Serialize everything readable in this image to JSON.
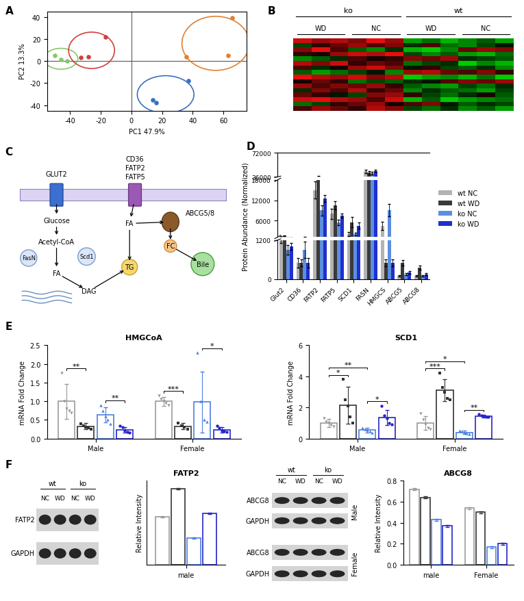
{
  "chart_data": [
    {
      "type": "scatter",
      "panel_label": "A",
      "xlabel": "PC1 47.9%",
      "ylabel": "PC2 13.3%",
      "xlim": [
        -55,
        75
      ],
      "ylim": [
        -45,
        45
      ],
      "xticks": [
        -40,
        -20,
        0,
        20,
        40,
        60
      ],
      "yticks": [
        -40,
        -20,
        0,
        20,
        40
      ],
      "series": [
        {
          "color": "#86c86a",
          "x": [
            -50,
            -46,
            -42
          ],
          "y": [
            5,
            1,
            0
          ]
        },
        {
          "color": "#d04040",
          "x": [
            -33,
            -28,
            -17
          ],
          "y": [
            3,
            4,
            22
          ]
        },
        {
          "color": "#3a6fc4",
          "x": [
            14,
            16,
            37
          ],
          "y": [
            -35,
            -38,
            -18
          ]
        },
        {
          "color": "#e08030",
          "x": [
            36,
            63,
            66
          ],
          "y": [
            4,
            5,
            39
          ]
        }
      ]
    },
    {
      "type": "heatmap",
      "panel_label": "B",
      "tick_labels": false,
      "zlim": [
        -1,
        1
      ],
      "column_groups": [
        {
          "label": "ko",
          "subgroups": [
            "WD",
            "NC"
          ]
        },
        {
          "label": "wt",
          "subgroups": [
            "WD",
            "NC"
          ]
        }
      ],
      "cells": [
        [
          0.8,
          0.6,
          0.7,
          0.5,
          0.9,
          0.6,
          -0.7,
          -0.5,
          -0.8,
          -0.6,
          -0.4,
          -0.7
        ],
        [
          -0.3,
          0.2,
          0.4,
          0.6,
          0.3,
          0.5,
          -0.2,
          0.3,
          -0.5,
          -0.6,
          -0.3,
          -0.1
        ],
        [
          0.5,
          0.9,
          0.3,
          -0.4,
          -0.6,
          -0.2,
          -0.8,
          -0.9,
          -0.6,
          0.4,
          0.6,
          0.5
        ],
        [
          0.2,
          0.1,
          0.6,
          0.8,
          0.7,
          0.9,
          -0.3,
          -0.6,
          -0.4,
          -0.7,
          -0.8,
          -0.5
        ],
        [
          -0.6,
          -0.4,
          -0.2,
          0.3,
          0.1,
          0.2,
          0.5,
          0.4,
          0.6,
          -0.2,
          -0.3,
          -0.4
        ],
        [
          0.7,
          0.5,
          0.8,
          0.2,
          0.4,
          0.3,
          -0.5,
          -0.3,
          -0.2,
          -0.9,
          -0.6,
          -0.8
        ],
        [
          0.3,
          -0.2,
          0.1,
          0.6,
          0.8,
          0.5,
          -0.1,
          0.2,
          -0.3,
          -0.4,
          -0.2,
          -0.6
        ],
        [
          -0.4,
          -0.7,
          -0.5,
          -0.3,
          -0.1,
          -0.6,
          0.6,
          0.7,
          0.4,
          0.3,
          0.5,
          0.2
        ],
        [
          0.9,
          0.7,
          0.6,
          0.8,
          0.5,
          0.7,
          -0.9,
          -0.7,
          -0.6,
          -0.8,
          -0.5,
          -0.9
        ],
        [
          0.1,
          0.4,
          0.2,
          -0.5,
          -0.3,
          -0.4,
          -0.2,
          -0.1,
          0.3,
          0.5,
          0.4,
          0.6
        ],
        [
          0.6,
          0.3,
          0.5,
          0.4,
          0.6,
          0.2,
          -0.4,
          -0.6,
          -0.7,
          -0.3,
          -0.5,
          -0.2
        ],
        [
          -0.2,
          0.5,
          0.3,
          0.7,
          0.2,
          0.4,
          -0.6,
          -0.2,
          -0.4,
          -0.5,
          -0.7,
          -0.3
        ],
        [
          0.4,
          0.2,
          -0.1,
          -0.3,
          0.5,
          0.6,
          0.2,
          -0.3,
          -0.5,
          -0.2,
          0.1,
          -0.4
        ],
        [
          0.8,
          0.9,
          0.7,
          0.6,
          0.3,
          0.8,
          -0.8,
          -0.4,
          -0.9,
          -0.7,
          -0.6,
          -0.5
        ],
        [
          -0.5,
          -0.3,
          0.2,
          0.4,
          0.6,
          0.1,
          0.3,
          0.5,
          -0.1,
          -0.4,
          -0.2,
          -0.3
        ],
        [
          0.3,
          0.6,
          0.4,
          0.2,
          0.7,
          0.5,
          -0.3,
          -0.5,
          -0.2,
          -0.6,
          -0.4,
          -0.7
        ]
      ]
    },
    {
      "type": "bar",
      "panel_label": "D",
      "ylabel": "Protein Abundance (Normalized)",
      "legend": "right",
      "categories": [
        "Glut2",
        "CD36",
        "FATP2",
        "FATP5",
        "SCD1",
        "FASN",
        "HMGCS",
        "ABCG5",
        "ABCG8"
      ],
      "y_segments": [
        {
          "ylim": [
            0,
            1200
          ],
          "yticks": [
            0,
            1200
          ]
        },
        {
          "ylim": [
            1200,
            18000
          ],
          "yticks": [
            6000,
            12000,
            18000
          ]
        },
        {
          "ylim": [
            36000,
            72000
          ],
          "yticks": [
            36000,
            72000
          ]
        }
      ],
      "series": [
        {
          "name": "wt NC",
          "color": "#b3b3b3",
          "values": [
            1300,
            500,
            15000,
            8000,
            2000,
            44000,
            4500,
            100,
            100
          ],
          "errors": [
            200,
            150,
            2500,
            1500,
            600,
            3000,
            1200,
            30,
            30
          ]
        },
        {
          "name": "wt WD",
          "color": "#3a3a3a",
          "values": [
            1500,
            500,
            36500,
            10500,
            5500,
            42000,
            500,
            500,
            350
          ],
          "errors": [
            100,
            100,
            1000,
            1200,
            1500,
            2500,
            100,
            80,
            60
          ]
        },
        {
          "name": "ko NC",
          "color": "#5b8fe0",
          "values": [
            900,
            900,
            9000,
            5500,
            2000,
            41000,
            9000,
            150,
            100
          ],
          "errors": [
            150,
            250,
            1500,
            800,
            400,
            2000,
            1800,
            40,
            30
          ]
        },
        {
          "name": "ko WD",
          "color": "#1f2fd0",
          "values": [
            1000,
            500,
            12500,
            7500,
            4500,
            45000,
            500,
            200,
            150
          ],
          "errors": [
            100,
            150,
            1000,
            600,
            900,
            2000,
            100,
            40,
            30
          ]
        }
      ]
    },
    {
      "type": "bar",
      "panel_label": "E",
      "title": "HMGCoA",
      "ylabel": "mRNA Fold Change",
      "categories": [
        "Male",
        "Female"
      ],
      "ylim": [
        0,
        2.5
      ],
      "yticks": [
        {
          "value": 0,
          "label": "0.0"
        },
        0.5,
        {
          "value": 1,
          "label": "1.0"
        },
        1.5,
        {
          "value": 2,
          "label": "2.0"
        },
        2.5
      ],
      "series": [
        {
          "name": "wt NC",
          "color": "#999999",
          "marker": "triangle_down",
          "values": [
            1.0,
            1.0
          ],
          "errors": [
            0.47,
            0.12
          ],
          "points": [
            [
              1.75,
              1.0,
              0.8,
              0.75,
              0.7
            ],
            [
              1.15,
              1.05,
              1.0,
              0.95,
              0.9
            ]
          ]
        },
        {
          "name": "wt WD",
          "color": "#333333",
          "marker": "square",
          "values": [
            0.33,
            0.33
          ],
          "errors": [
            0.08,
            0.08
          ],
          "points": [
            [
              0.4,
              0.35,
              0.3,
              0.28,
              0.25
            ],
            [
              0.42,
              0.35,
              0.3,
              0.25
            ]
          ]
        },
        {
          "name": "ko NC",
          "color": "#4a7fe0",
          "marker": "triangle_up",
          "values": [
            0.63,
            0.98
          ],
          "errors": [
            0.2,
            0.82
          ],
          "points": [
            [
              0.9,
              0.75,
              0.6,
              0.5,
              0.4
            ],
            [
              2.3,
              1.0,
              0.5,
              0.45
            ]
          ]
        },
        {
          "name": "ko WD",
          "color": "#2424c8",
          "marker": "circle",
          "values": [
            0.23,
            0.23
          ],
          "errors": [
            0.08,
            0.08
          ],
          "points": [
            [
              0.35,
              0.3,
              0.22,
              0.18,
              0.15
            ],
            [
              0.35,
              0.28,
              0.22,
              0.2,
              0.18
            ]
          ]
        }
      ],
      "significance": [
        {
          "category": "Male",
          "from": "wt NC",
          "to": "wt WD",
          "label": "**"
        },
        {
          "category": "Male",
          "from": "ko NC",
          "to": "ko WD",
          "label": "**"
        },
        {
          "category": "Female",
          "from": "wt NC",
          "to": "wt WD",
          "label": "***"
        },
        {
          "category": "Female",
          "from": "ko NC",
          "to": "ko WD",
          "label": "*"
        }
      ]
    },
    {
      "type": "bar",
      "title": "SCD1",
      "ylabel": "mRNA Fold Change",
      "categories": [
        "Male",
        "Female"
      ],
      "ylim": [
        0,
        6
      ],
      "yticks": [
        0,
        2,
        4,
        6
      ],
      "series": [
        {
          "name": "wt NC",
          "color": "#999999",
          "marker": "triangle_down",
          "values": [
            1.0,
            1.0
          ],
          "errors": [
            0.25,
            0.45
          ],
          "points": [
            [
              1.3,
              1.1,
              1.0,
              0.85,
              0.8
            ],
            [
              1.6,
              1.2,
              0.9,
              0.7,
              0.6
            ]
          ]
        },
        {
          "name": "wt WD",
          "color": "#333333",
          "marker": "square",
          "values": [
            2.15,
            3.1
          ],
          "errors": [
            1.2,
            0.7
          ],
          "points": [
            [
              3.8,
              2.5,
              2.1,
              1.4,
              1.0
            ],
            [
              4.2,
              3.3,
              3.0,
              2.6,
              2.5
            ]
          ]
        },
        {
          "name": "ko NC",
          "color": "#4a7fe0",
          "marker": "triangle_up",
          "values": [
            0.55,
            0.4
          ],
          "errors": [
            0.15,
            0.1
          ],
          "points": [
            [
              0.7,
              0.6,
              0.55,
              0.45,
              0.4
            ],
            [
              0.5,
              0.45,
              0.4,
              0.35,
              0.3
            ]
          ]
        },
        {
          "name": "ko WD",
          "color": "#2424c8",
          "marker": "circle",
          "values": [
            1.35,
            1.45
          ],
          "errors": [
            0.5,
            0.08
          ],
          "points": [
            [
              2.1,
              1.5,
              1.3,
              1.0,
              0.9
            ],
            [
              1.55,
              1.5,
              1.45,
              1.4,
              1.38
            ]
          ]
        }
      ],
      "significance": [
        {
          "category": "Male",
          "from": "wt NC",
          "to": "wt WD",
          "label": "*"
        },
        {
          "category": "Male",
          "from": "wt NC",
          "to": "ko NC",
          "label": "**"
        },
        {
          "category": "Male",
          "from": "ko NC",
          "to": "ko WD",
          "label": "*"
        },
        {
          "category": "Female",
          "from": "wt NC",
          "to": "wt WD",
          "label": "***"
        },
        {
          "category": "Female",
          "from": "wt NC",
          "to": "ko NC",
          "label": "*"
        },
        {
          "category": "Female",
          "from": "ko NC",
          "to": "ko WD",
          "label": "**"
        }
      ]
    },
    {
      "type": "bar",
      "title": "FATP2",
      "ylabel": "Relative Intensity",
      "categories": [
        "male"
      ],
      "ylim": [
        0,
        2.5
      ],
      "tick_labels": "x",
      "series": [
        {
          "name": "wt NC",
          "color": "#999999",
          "values": [
            1.42
          ],
          "errors": [
            0.02
          ]
        },
        {
          "name": "wt WD",
          "color": "#333333",
          "values": [
            2.27
          ],
          "errors": [
            0.02
          ]
        },
        {
          "name": "ko NC",
          "color": "#4a7fe0",
          "values": [
            0.8
          ],
          "errors": [
            0.02
          ]
        },
        {
          "name": "ko WD",
          "color": "#2424c8",
          "values": [
            1.52
          ],
          "errors": [
            0.02
          ]
        }
      ]
    },
    {
      "type": "bar",
      "title": "ABCG8",
      "ylabel": "Relative Intensity",
      "categories": [
        "male",
        "Female"
      ],
      "ylim": [
        0,
        0.8
      ],
      "yticks": [
        {
          "value": 0,
          "label": "0.0"
        },
        0.2,
        0.4,
        0.6,
        0.8
      ],
      "series": [
        {
          "name": "wt NC",
          "color": "#999999",
          "values": [
            0.72,
            0.54
          ],
          "errors": [
            0.01,
            0.01
          ]
        },
        {
          "name": "wt WD",
          "color": "#333333",
          "values": [
            0.64,
            0.5
          ],
          "errors": [
            0.01,
            0.01
          ]
        },
        {
          "name": "ko NC",
          "color": "#4a7fe0",
          "values": [
            0.43,
            0.17
          ],
          "errors": [
            0.01,
            0.01
          ]
        },
        {
          "name": "ko WD",
          "color": "#2424c8",
          "values": [
            0.37,
            0.2
          ],
          "errors": [
            0.01,
            0.01
          ]
        }
      ]
    }
  ],
  "diagram": {
    "panel_label": "C",
    "nodes": [
      {
        "label": "GLUT2"
      },
      {
        "label": "CD36"
      },
      {
        "label": "FATP2"
      },
      {
        "label": "FATP5"
      },
      {
        "label": "Glucose"
      },
      {
        "label": "Acetyl-CoA"
      },
      {
        "label": "FasN"
      },
      {
        "label": "Scd1"
      },
      {
        "label": "FA"
      },
      {
        "label": "DAG"
      },
      {
        "label": "TG"
      },
      {
        "label": "FA"
      },
      {
        "label": "FC"
      },
      {
        "label": "ABCG5/8"
      },
      {
        "label": "Bile"
      }
    ]
  },
  "blots": {
    "panel_label": "F",
    "first": {
      "groups": [
        "wt",
        "ko"
      ],
      "lanes": [
        "NC",
        "WD",
        "NC",
        "WD"
      ],
      "rows": [
        "FATP2",
        "GAPDH"
      ]
    },
    "second": {
      "groups": [
        "wt",
        "ko"
      ],
      "lanes": [
        "NC",
        "WD",
        "NC",
        "WD"
      ],
      "sections": [
        {
          "side_label": "Male",
          "rows": [
            "ABCG8",
            "GAPDH"
          ]
        },
        {
          "side_label": "Female",
          "rows": [
            "ABCG8",
            "GAPDH"
          ]
        }
      ]
    }
  }
}
